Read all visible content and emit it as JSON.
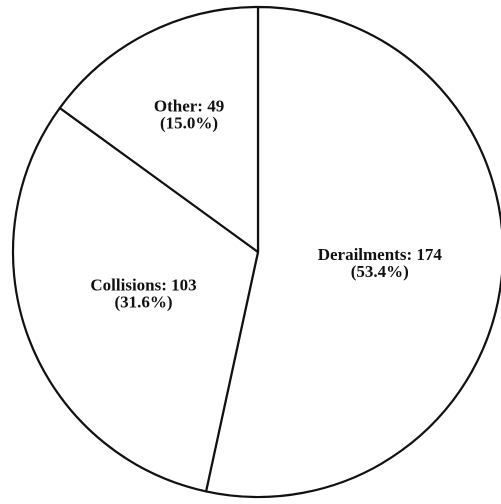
{
  "chart_data": {
    "type": "pie",
    "categories": [
      "Derailments: 174",
      "Collisions: 103",
      "Other: 49"
    ],
    "values": [
      53.4,
      31.6,
      15.0
    ],
    "value_labels": [
      "(53.4%)",
      "(31.6%)",
      "(15.0%)"
    ],
    "colors": [
      "#ffffff",
      "#ffffff",
      "#ffffff"
    ]
  }
}
